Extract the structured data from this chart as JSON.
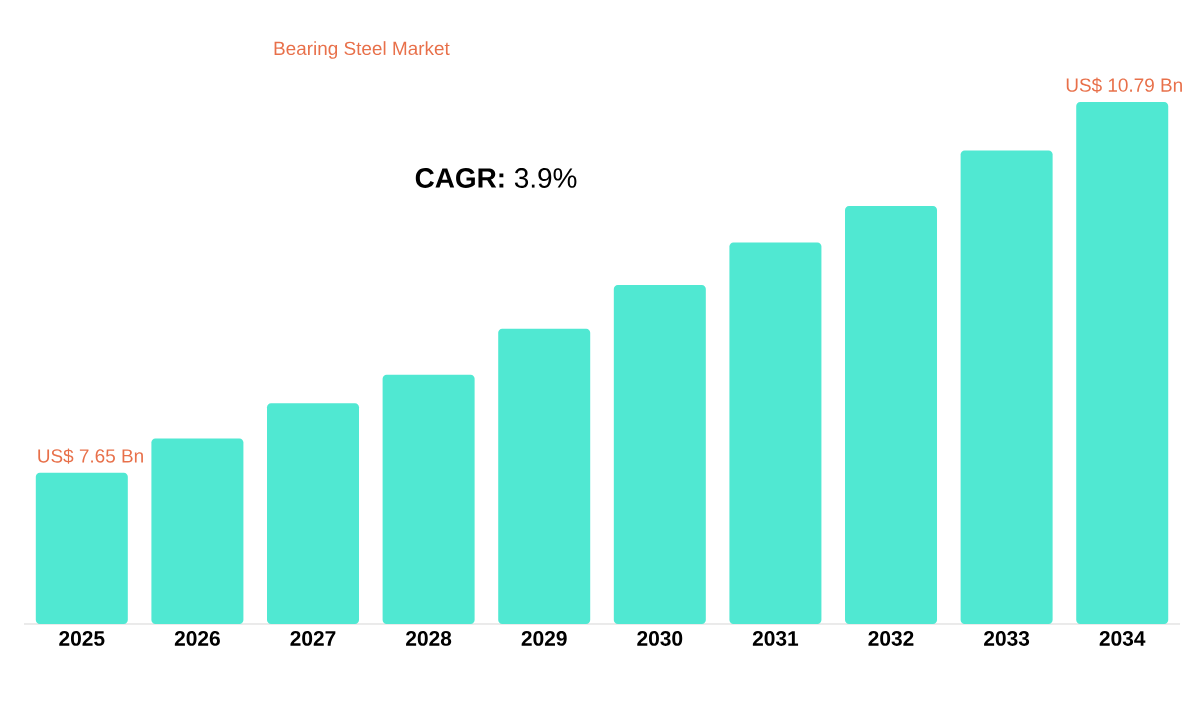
{
  "chart_data": {
    "type": "bar",
    "title": "Bearing Steel Market",
    "categories": [
      "2025",
      "2026",
      "2027",
      "2028",
      "2029",
      "2030",
      "2031",
      "2032",
      "2033",
      "2034"
    ],
    "values": [
      7.65,
      7.94,
      8.24,
      8.48,
      8.87,
      9.24,
      9.6,
      9.91,
      10.38,
      10.79
    ],
    "value_labels": [
      "US$ 7.65 Bn",
      null,
      null,
      null,
      null,
      null,
      null,
      null,
      null,
      "US$ 10.79 Bn"
    ],
    "ylim": [
      6.37,
      10.79
    ],
    "tick_labels": "x",
    "color": "#50e8d2",
    "annotations": [
      "**CAGR:** 3.9%"
    ]
  }
}
